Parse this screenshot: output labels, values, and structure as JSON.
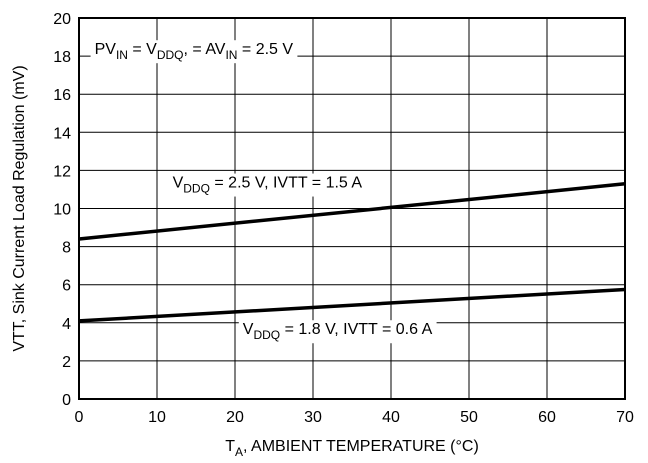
{
  "chart_data": {
    "type": "line",
    "title": "",
    "xlabel": {
      "main": "T",
      "sub": "A",
      "rest": ", AMBIENT TEMPERATURE (°C)"
    },
    "ylabel": "VTT, Sink Current Load Regulation (mV)",
    "xlim": [
      0,
      70
    ],
    "ylim": [
      0,
      20
    ],
    "xticks": [
      0,
      10,
      20,
      30,
      40,
      50,
      60,
      70
    ],
    "yticks": [
      0,
      2,
      4,
      6,
      8,
      10,
      12,
      14,
      16,
      18,
      20
    ],
    "grid": true,
    "series": [
      {
        "x": [
          0,
          70
        ],
        "y": [
          8.4,
          11.3
        ]
      },
      {
        "x": [
          0,
          70
        ],
        "y": [
          4.1,
          5.75
        ]
      }
    ],
    "annotations": [
      {
        "at": [
          2,
          18.1
        ],
        "parts": [
          {
            "t": "PV"
          },
          {
            "t": "IN",
            "sub": true
          },
          {
            "t": " = V"
          },
          {
            "t": "DDQ",
            "sub": true
          },
          {
            "t": ", = AV"
          },
          {
            "t": "IN",
            "sub": true
          },
          {
            "t": " = 2.5 V"
          }
        ]
      },
      {
        "at": [
          12,
          11.1
        ],
        "parts": [
          {
            "t": "V"
          },
          {
            "t": "DDQ",
            "sub": true
          },
          {
            "t": " = 2.5 V, IVTT = 1.5 A"
          }
        ]
      },
      {
        "at": [
          21,
          3.4
        ],
        "parts": [
          {
            "t": "V"
          },
          {
            "t": "DDQ",
            "sub": true
          },
          {
            "t": " = 1.8 V, IVTT = 0.6 A"
          }
        ]
      }
    ]
  }
}
